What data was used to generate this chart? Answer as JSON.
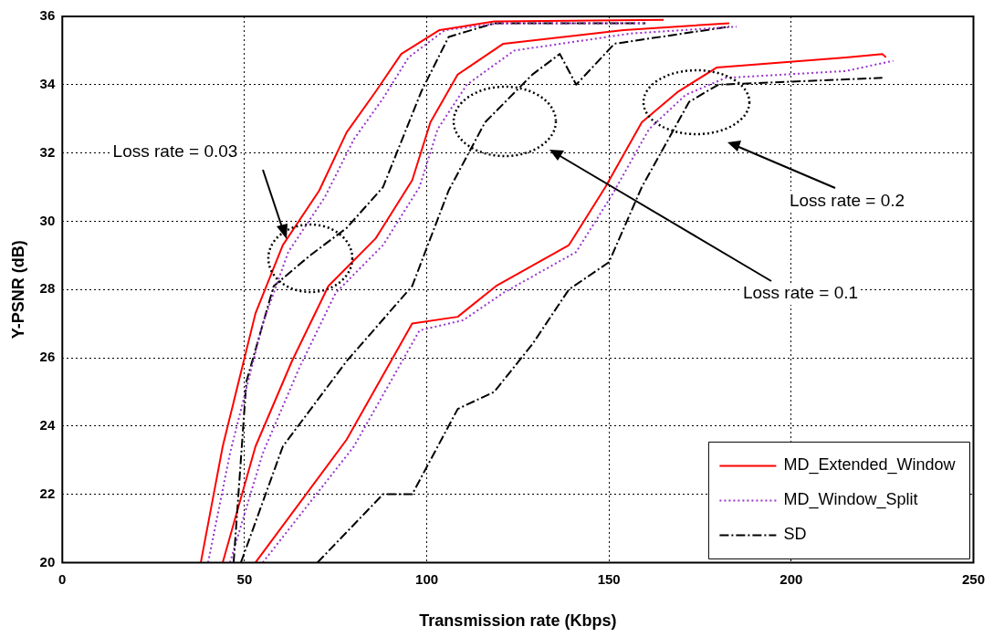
{
  "chart_data": {
    "type": "line",
    "xlabel": "Transmission rate (Kbps)",
    "ylabel": "Y-PSNR (dB)",
    "xlim": [
      0,
      250
    ],
    "xticks": [
      0,
      50,
      100,
      150,
      200,
      250
    ],
    "ylim": [
      20,
      36
    ],
    "yticks": [
      20,
      22,
      24,
      26,
      28,
      30,
      32,
      34,
      36
    ],
    "grid": true,
    "legend": "bottom right",
    "marker": "none",
    "series": [
      {
        "name": "MD_Extended_Window",
        "color": "#ff0000",
        "line_style": "solid",
        "x": [
          38,
          44,
          53,
          60.5,
          70.5,
          78,
          86,
          93,
          103.5,
          118.5,
          165
        ],
        "values": [
          20,
          23.4,
          27.3,
          29.3,
          30.9,
          32.6,
          33.8,
          34.9,
          35.6,
          35.85,
          35.9
        ]
      },
      {
        "name": "MD_Window_Split",
        "color": "#9933cc",
        "line_style": "dotted",
        "x": [
          40,
          46,
          55,
          62,
          72,
          80,
          88,
          95,
          105,
          120,
          160
        ],
        "values": [
          20,
          23.2,
          27,
          29.1,
          30.7,
          32.4,
          33.6,
          34.8,
          35.6,
          35.8,
          35.8
        ]
      },
      {
        "name": "SD",
        "color": "#000000",
        "line_style": "dashed",
        "x": [
          47,
          50.5,
          58,
          68,
          78,
          88,
          98.5,
          106,
          118.5,
          160
        ],
        "values": [
          20,
          25.3,
          28.1,
          29,
          29.8,
          31,
          33.8,
          35.4,
          35.8,
          35.8
        ]
      },
      {
        "color": "#ff0000",
        "line_style": "solid",
        "x": [
          44,
          53,
          63,
          73,
          86,
          96,
          101,
          108.5,
          121,
          154,
          183
        ],
        "values": [
          20,
          23.4,
          25.9,
          28.1,
          29.5,
          31.2,
          32.9,
          34.3,
          35.2,
          35.6,
          35.8
        ]
      },
      {
        "color": "#9933cc",
        "line_style": "dotted",
        "x": [
          46,
          55,
          65,
          75,
          88,
          98,
          103,
          111,
          124,
          156,
          185
        ],
        "values": [
          20,
          23.2,
          25.7,
          27.9,
          29.3,
          31,
          32.7,
          34,
          35,
          35.5,
          35.7
        ]
      },
      {
        "color": "#000000",
        "line_style": "dashed",
        "x": [
          49,
          60.5,
          78,
          96,
          106,
          116,
          129,
          136.5,
          141,
          151.5,
          183
        ],
        "values": [
          20,
          23.4,
          25.9,
          28.1,
          30.9,
          32.9,
          34.3,
          34.9,
          34,
          35.2,
          35.7
        ]
      },
      {
        "color": "#ff0000",
        "line_style": "solid",
        "x": [
          53,
          78,
          96,
          108.5,
          119,
          139,
          149,
          159,
          169,
          179.5,
          215,
          225,
          226
        ],
        "values": [
          20,
          23.6,
          27,
          27.2,
          28.1,
          29.3,
          31,
          32.9,
          33.8,
          34.5,
          34.8,
          34.9,
          34.8
        ]
      },
      {
        "color": "#9933cc",
        "line_style": "dotted",
        "x": [
          55,
          80,
          98,
          110,
          121,
          141,
          151,
          161,
          171,
          182,
          215,
          228
        ],
        "values": [
          20,
          23.4,
          26.8,
          27.1,
          27.9,
          29.1,
          30.8,
          32.7,
          33.7,
          34.2,
          34.4,
          34.7
        ]
      },
      {
        "color": "#000000",
        "line_style": "dashed",
        "x": [
          70,
          88,
          96,
          108.5,
          118.5,
          129,
          139,
          150,
          159,
          172,
          180,
          225
        ],
        "values": [
          20,
          22,
          22,
          24.5,
          25,
          26.4,
          28,
          28.8,
          31,
          33.5,
          34,
          34.2
        ]
      }
    ],
    "annotations": [
      "Loss rate = 0.03",
      "Loss rate = 0.2",
      "Loss rate = 0.1"
    ]
  }
}
